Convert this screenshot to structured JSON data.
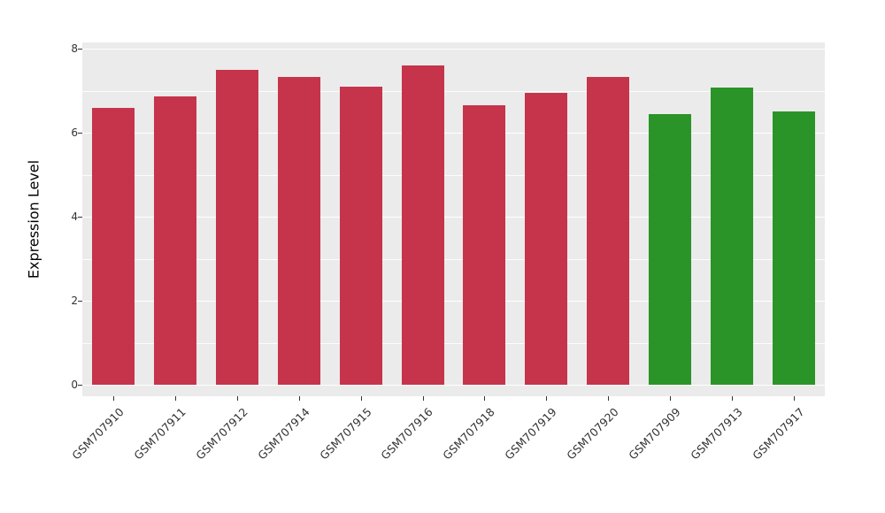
{
  "figure": {
    "background": "#FFFFFF",
    "panel_background": "#EBEBEB",
    "grid_color": "#FFFFFF"
  },
  "chart_data": {
    "type": "bar",
    "title": "",
    "xlabel": "",
    "ylabel": "Expression Level",
    "ylim": [
      0,
      8
    ],
    "yticks": [
      0,
      2,
      4,
      6,
      8
    ],
    "yticks_minor": [
      1,
      3,
      5,
      7
    ],
    "grid": true,
    "legend_position": "none",
    "categories": [
      "GSM707910",
      "GSM707911",
      "GSM707912",
      "GSM707914",
      "GSM707915",
      "GSM707916",
      "GSM707918",
      "GSM707919",
      "GSM707920",
      "GSM707909",
      "GSM707913",
      "GSM707917"
    ],
    "values": [
      6.6,
      6.86,
      7.5,
      7.33,
      7.1,
      7.6,
      6.65,
      6.94,
      7.33,
      6.45,
      7.08,
      6.51
    ],
    "bar_colors": [
      "#C5344B",
      "#C5344B",
      "#C5344B",
      "#C5344B",
      "#C5344B",
      "#C5344B",
      "#C5344B",
      "#C5344B",
      "#C5344B",
      "#2A9428",
      "#2A9428",
      "#2A9428"
    ],
    "group_colors": {
      "red_group": "#C5344B",
      "green_group": "#2A9428"
    }
  }
}
